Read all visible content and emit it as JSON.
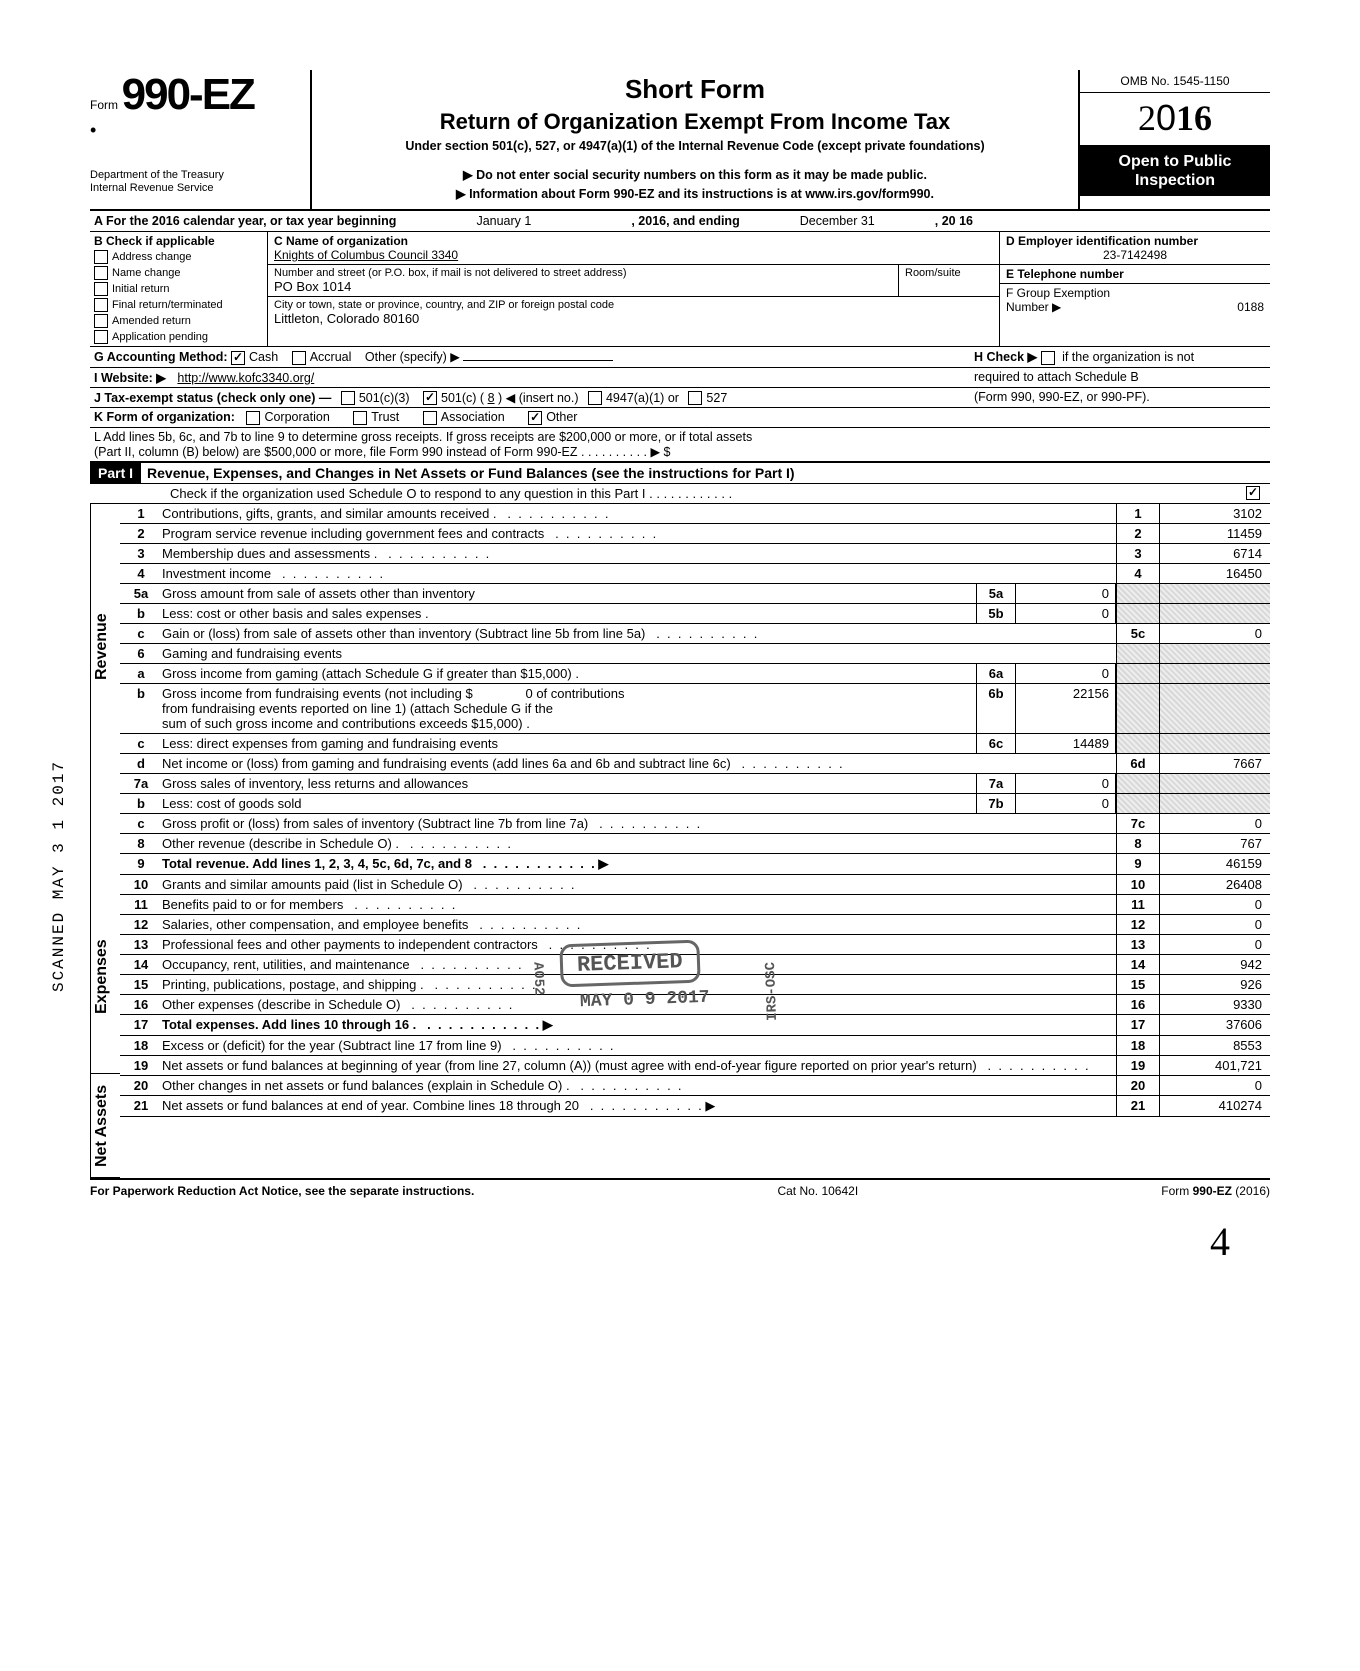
{
  "meta": {
    "omb": "OMB No. 1545-1150",
    "year": "2016",
    "open1": "Open to Public",
    "open2": "Inspection",
    "form_word": "Form",
    "form_num": "990-EZ",
    "dept1": "Department of the Treasury",
    "dept2": "Internal Revenue Service",
    "title1": "Short Form",
    "title2": "Return of Organization Exempt From Income Tax",
    "title3": "Under section 501(c), 527, or 4947(a)(1) of the Internal Revenue Code (except private foundations)",
    "title4": "▶ Do not enter social security numbers on this form as it may be made public.",
    "title5": "▶ Information about Form 990-EZ and its instructions is at www.irs.gov/form990."
  },
  "lineA": {
    "prefix": "A  For the 2016 calendar year, or tax year beginning",
    "begin": "January 1",
    "mid": ", 2016, and ending",
    "end": "December 31",
    "yr": ", 20   16"
  },
  "boxB": {
    "label": "B  Check if applicable",
    "opts": [
      "Address change",
      "Name change",
      "Initial return",
      "Final return/terminated",
      "Amended return",
      "Application pending"
    ]
  },
  "boxC": {
    "label": "C  Name of organization",
    "name": "Knights of Columbus Council 3340",
    "addr_label": "Number and street (or P.O. box, if mail is not delivered to street address)",
    "room_label": "Room/suite",
    "addr": "PO Box 1014",
    "city_label": "City or town, state or province, country, and ZIP or foreign postal code",
    "city": "Littleton, Colorado 80160"
  },
  "boxD": {
    "label": "D Employer identification number",
    "val": "23-7142498"
  },
  "boxE": {
    "label": "E  Telephone number",
    "val": ""
  },
  "boxF": {
    "label": "F  Group Exemption",
    "label2": "Number  ▶",
    "val": "0188"
  },
  "lineG": {
    "label": "G  Accounting Method:",
    "cash": "Cash",
    "accrual": "Accrual",
    "other": "Other (specify) ▶"
  },
  "lineH": {
    "text1": "H  Check ▶",
    "text2": "if the organization is not",
    "text3": "required to attach Schedule B",
    "text4": "(Form 990, 990-EZ, or 990-PF)."
  },
  "lineI": {
    "label": "I   Website: ▶",
    "val": "http://www.kofc3340.org/"
  },
  "lineJ": {
    "label": "J  Tax-exempt status (check only one) —",
    "c3": "501(c)(3)",
    "c": "501(c) (",
    "cn": "8",
    "ci": ") ◀ (insert no.)",
    "a1": "4947(a)(1) or",
    "s527": "527"
  },
  "lineK": {
    "label": "K  Form of organization:",
    "corp": "Corporation",
    "trust": "Trust",
    "assoc": "Association",
    "other": "Other"
  },
  "lineL": {
    "text": "L  Add lines 5b, 6c, and 7b to line 9 to determine gross receipts. If gross receipts are $200,000 or more, or if total assets",
    "text2": "(Part II, column (B) below) are $500,000 or more, file Form 990 instead of Form 990-EZ .   .   .   .   .   .   .   .   .   .   ▶   $"
  },
  "part1": {
    "label": "Part I",
    "title": "Revenue, Expenses, and Changes in Net Assets or Fund Balances (see the instructions for Part I)",
    "sub": "Check if the organization used Schedule O to respond to any question in this Part I .   .   .   .   .   .   .   .   .   .   .   ."
  },
  "sections": {
    "rev": "Revenue",
    "exp": "Expenses",
    "na": "Net Assets"
  },
  "lines": {
    "l1": {
      "n": "1",
      "d": "Contributions, gifts, grants, and similar amounts received .",
      "val": "3102"
    },
    "l2": {
      "n": "2",
      "d": "Program service revenue including government fees and contracts",
      "val": "11459"
    },
    "l3": {
      "n": "3",
      "d": "Membership dues and assessments .",
      "val": "6714"
    },
    "l4": {
      "n": "4",
      "d": "Investment income",
      "val": "16450"
    },
    "l5a": {
      "n": "5a",
      "d": "Gross amount from sale of assets other than inventory",
      "mid": "5a",
      "mval": "0"
    },
    "l5b": {
      "n": "b",
      "d": "Less: cost or other basis and sales expenses .",
      "mid": "5b",
      "mval": "0"
    },
    "l5c": {
      "n": "c",
      "d": "Gain or (loss) from sale of assets other than inventory (Subtract line 5b from line 5a)",
      "on": "5c",
      "val": "0"
    },
    "l6": {
      "n": "6",
      "d": "Gaming and fundraising events"
    },
    "l6a": {
      "n": "a",
      "d": "Gross income from gaming (attach Schedule G if greater than $15,000) .",
      "mid": "6a",
      "mval": "0"
    },
    "l6b": {
      "n": "b",
      "d1": "Gross income from fundraising events (not including  $",
      "d1b": "0",
      "d1c": "of contributions",
      "d2": "from fundraising events reported on line 1) (attach Schedule G if the",
      "d3": "sum of such gross income and contributions exceeds $15,000) .",
      "mid": "6b",
      "mval": "22156"
    },
    "l6c": {
      "n": "c",
      "d": "Less: direct expenses from gaming and fundraising events",
      "mid": "6c",
      "mval": "14489"
    },
    "l6d": {
      "n": "d",
      "d": "Net income or (loss) from gaming and fundraising events (add lines 6a and 6b and subtract line 6c)",
      "on": "6d",
      "val": "7667"
    },
    "l7a": {
      "n": "7a",
      "d": "Gross sales of inventory, less returns and allowances",
      "mid": "7a",
      "mval": "0"
    },
    "l7b": {
      "n": "b",
      "d": "Less: cost of goods sold",
      "mid": "7b",
      "mval": "0"
    },
    "l7c": {
      "n": "c",
      "d": "Gross profit or (loss) from sales of inventory (Subtract line 7b from line 7a)",
      "on": "7c",
      "val": "0"
    },
    "l8": {
      "n": "8",
      "d": "Other revenue (describe in Schedule O) .",
      "val": "767"
    },
    "l9": {
      "n": "9",
      "d": "Total revenue. Add lines 1, 2, 3, 4, 5c, 6d, 7c, and 8",
      "val": "46159",
      "bold": true
    },
    "l10": {
      "n": "10",
      "d": "Grants and similar amounts paid (list in Schedule O)",
      "val": "26408"
    },
    "l11": {
      "n": "11",
      "d": "Benefits paid to or for members",
      "val": "0"
    },
    "l12": {
      "n": "12",
      "d": "Salaries, other compensation, and employee benefits",
      "val": "0"
    },
    "l13": {
      "n": "13",
      "d": "Professional fees and other payments to independent contractors",
      "val": "0"
    },
    "l14": {
      "n": "14",
      "d": "Occupancy, rent, utilities, and maintenance",
      "val": "942"
    },
    "l15": {
      "n": "15",
      "d": "Printing, publications, postage, and shipping .",
      "val": "926"
    },
    "l16": {
      "n": "16",
      "d": "Other expenses (describe in Schedule O)",
      "val": "9330"
    },
    "l17": {
      "n": "17",
      "d": "Total expenses. Add lines 10 through 16 .",
      "val": "37606",
      "bold": true
    },
    "l18": {
      "n": "18",
      "d": "Excess or (deficit) for the year (Subtract line 17 from line 9)",
      "val": "8553"
    },
    "l19": {
      "n": "19",
      "d": "Net assets or fund balances at beginning of year (from line 27, column (A)) (must agree with end-of-year figure reported on prior year's return)",
      "val": "401,721"
    },
    "l20": {
      "n": "20",
      "d": "Other changes in net assets or fund balances (explain in Schedule O) .",
      "val": "0"
    },
    "l21": {
      "n": "21",
      "d": "Net assets or fund balances at end of year. Combine lines 18 through 20",
      "val": "410274"
    }
  },
  "footer": {
    "left": "For Paperwork Reduction Act Notice, see the separate instructions.",
    "mid": "Cat  No. 10642I",
    "right": "Form 990-EZ  (2016)"
  },
  "stamp": {
    "rec": "RECEIVED",
    "date": "MAY  0 9  2017",
    "irs": "IRS-OSC",
    "code": "A052"
  },
  "scanned": "SCANNED  MAY  3 1  2017",
  "pagenum": "4"
}
